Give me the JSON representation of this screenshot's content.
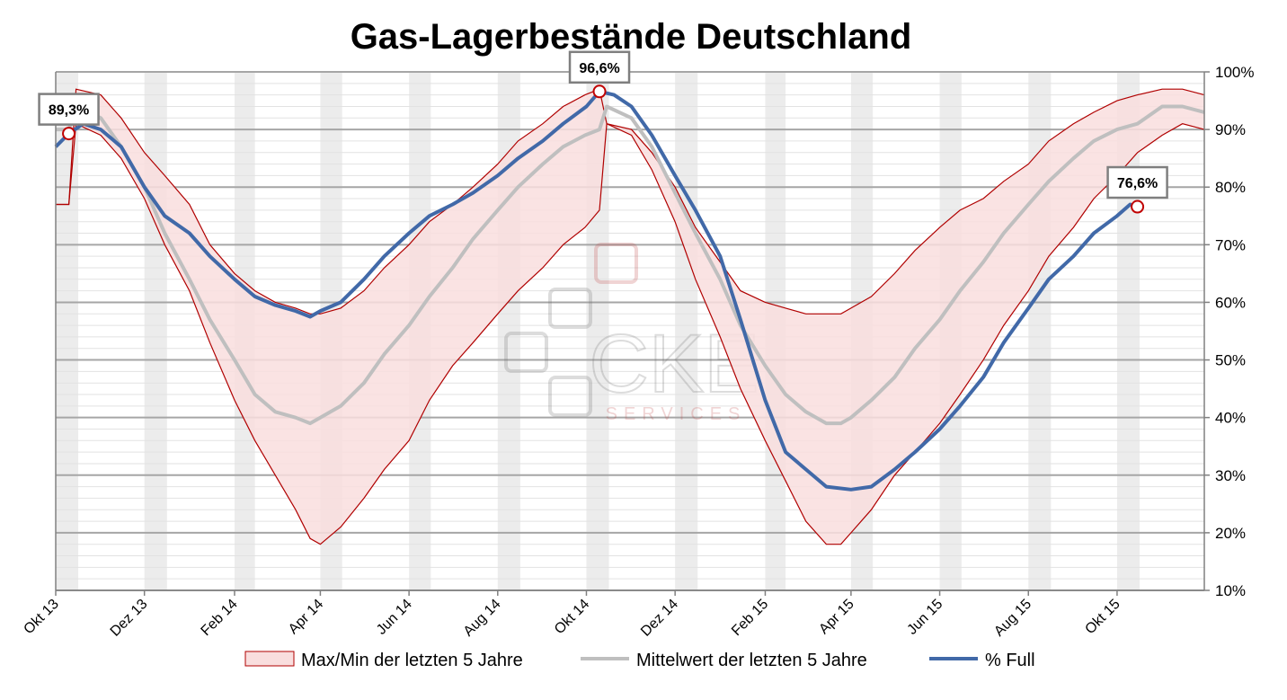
{
  "chart_data": {
    "type": "line",
    "title": "Gas-Lagerbestände Deutschland",
    "x_axis": {
      "tick_labels": [
        "Okt 13",
        "Dez 13",
        "Feb 14",
        "Apr 14",
        "Jun 14",
        "Aug 14",
        "Okt 14",
        "Dez 14",
        "Feb 15",
        "Apr 15",
        "Jun 15",
        "Aug 15",
        "Okt 15"
      ],
      "range": [
        "2013-10-01",
        "2015-11-30"
      ],
      "alternating_month_shading": true
    },
    "y_axis": {
      "position": "right",
      "min": 10,
      "max": 100,
      "unit": "%",
      "tick_labels": [
        "10%",
        "20%",
        "30%",
        "40%",
        "50%",
        "60%",
        "70%",
        "80%",
        "90%",
        "100%"
      ],
      "grid": true
    },
    "series": [
      {
        "name": "Max/Min der letzten 5 Jahre",
        "type": "band",
        "color": "#b00000",
        "fill": "#f9dede",
        "x": [
          "2013-10-01",
          "2013-10-10",
          "2013-10-15",
          "2013-11-01",
          "2013-11-15",
          "2013-12-01",
          "2013-12-15",
          "2014-01-01",
          "2014-01-15",
          "2014-02-01",
          "2014-02-15",
          "2014-03-01",
          "2014-03-15",
          "2014-03-25",
          "2014-04-01",
          "2014-04-15",
          "2014-05-01",
          "2014-05-15",
          "2014-06-01",
          "2014-06-15",
          "2014-07-01",
          "2014-07-15",
          "2014-08-01",
          "2014-08-15",
          "2014-09-01",
          "2014-09-15",
          "2014-09-30",
          "2014-10-10",
          "2014-10-15",
          "2014-11-01",
          "2014-11-15",
          "2014-12-01",
          "2014-12-15",
          "2015-01-01",
          "2015-01-15",
          "2015-02-01",
          "2015-02-15",
          "2015-03-01",
          "2015-03-15",
          "2015-03-25",
          "2015-04-01",
          "2015-04-15",
          "2015-05-01",
          "2015-05-15",
          "2015-06-01",
          "2015-06-15",
          "2015-07-01",
          "2015-07-15",
          "2015-08-01",
          "2015-08-15",
          "2015-09-01",
          "2015-09-15",
          "2015-10-01",
          "2015-10-15",
          "2015-11-01",
          "2015-11-15",
          "2015-11-30"
        ],
        "max": [
          77,
          77,
          97,
          96,
          92,
          86,
          82,
          77,
          70,
          65,
          62,
          60,
          59,
          58,
          58,
          59,
          62,
          66,
          70,
          74,
          77,
          80,
          84,
          88,
          91,
          94,
          96,
          97,
          91,
          90,
          86,
          80,
          73,
          67,
          62,
          60,
          59,
          58,
          58,
          58,
          59,
          61,
          65,
          69,
          73,
          76,
          78,
          81,
          84,
          88,
          91,
          93,
          95,
          96,
          97,
          97,
          96
        ],
        "min": [
          77,
          77,
          91,
          89,
          85,
          78,
          70,
          62,
          53,
          43,
          36,
          30,
          24,
          19,
          18,
          21,
          26,
          31,
          36,
          43,
          49,
          53,
          58,
          62,
          66,
          70,
          73,
          76,
          91,
          89,
          83,
          74,
          64,
          54,
          45,
          36,
          29,
          22,
          18,
          18,
          20,
          24,
          30,
          34,
          39,
          44,
          50,
          56,
          62,
          68,
          73,
          78,
          82,
          86,
          89,
          91,
          90
        ]
      },
      {
        "name": "Mittelwert der letzten 5 Jahre",
        "color": "#bfbfbf",
        "x": [
          "2013-10-01",
          "2013-10-10",
          "2013-10-15",
          "2013-11-01",
          "2013-11-15",
          "2013-12-01",
          "2013-12-15",
          "2014-01-01",
          "2014-01-15",
          "2014-02-01",
          "2014-02-15",
          "2014-03-01",
          "2014-03-15",
          "2014-03-25",
          "2014-04-01",
          "2014-04-15",
          "2014-05-01",
          "2014-05-15",
          "2014-06-01",
          "2014-06-15",
          "2014-07-01",
          "2014-07-15",
          "2014-08-01",
          "2014-08-15",
          "2014-09-01",
          "2014-09-15",
          "2014-09-30",
          "2014-10-10",
          "2014-10-15",
          "2014-11-01",
          "2014-11-15",
          "2014-12-01",
          "2014-12-15",
          "2015-01-01",
          "2015-01-15",
          "2015-02-01",
          "2015-02-15",
          "2015-03-01",
          "2015-03-15",
          "2015-03-25",
          "2015-04-01",
          "2015-04-15",
          "2015-05-01",
          "2015-05-15",
          "2015-06-01",
          "2015-06-15",
          "2015-07-01",
          "2015-07-15",
          "2015-08-01",
          "2015-08-15",
          "2015-09-01",
          "2015-09-15",
          "2015-10-01",
          "2015-10-15",
          "2015-11-01",
          "2015-11-15",
          "2015-11-30"
        ],
        "values": [
          90,
          90,
          94,
          92,
          87,
          80,
          72,
          64,
          57,
          50,
          44,
          41,
          40,
          39,
          40,
          42,
          46,
          51,
          56,
          61,
          66,
          71,
          76,
          80,
          84,
          87,
          89,
          90,
          94,
          92,
          87,
          79,
          72,
          64,
          56,
          49,
          44,
          41,
          39,
          39,
          40,
          43,
          47,
          52,
          57,
          62,
          67,
          72,
          77,
          81,
          85,
          88,
          90,
          91,
          94,
          94,
          93
        ]
      },
      {
        "name": "% Full",
        "color": "#4169a8",
        "x": [
          "2013-10-01",
          "2013-10-10",
          "2013-10-20",
          "2013-11-01",
          "2013-11-15",
          "2013-12-01",
          "2013-12-15",
          "2014-01-01",
          "2014-01-15",
          "2014-02-01",
          "2014-02-15",
          "2014-03-01",
          "2014-03-15",
          "2014-03-25",
          "2014-04-01",
          "2014-04-15",
          "2014-05-01",
          "2014-05-15",
          "2014-06-01",
          "2014-06-15",
          "2014-07-01",
          "2014-07-15",
          "2014-08-01",
          "2014-08-15",
          "2014-09-01",
          "2014-09-15",
          "2014-10-01",
          "2014-10-10",
          "2014-10-20",
          "2014-11-01",
          "2014-11-15",
          "2014-12-01",
          "2014-12-15",
          "2015-01-01",
          "2015-01-15",
          "2015-02-01",
          "2015-02-15",
          "2015-03-01",
          "2015-03-15",
          "2015-04-01",
          "2015-04-15",
          "2015-05-01",
          "2015-05-15",
          "2015-06-01",
          "2015-06-15",
          "2015-07-01",
          "2015-07-15",
          "2015-08-01",
          "2015-08-15",
          "2015-09-01",
          "2015-09-15",
          "2015-10-01",
          "2015-10-10",
          "2015-10-15"
        ],
        "values": [
          87,
          89.3,
          91,
          90,
          87,
          80,
          75,
          72,
          68,
          64,
          61,
          59.5,
          58.5,
          57.5,
          58.5,
          60,
          64,
          68,
          72,
          75,
          77,
          79,
          82,
          85,
          88,
          91,
          94,
          96.6,
          96,
          94,
          89,
          82,
          76,
          68,
          57,
          43,
          34,
          31,
          28,
          27.5,
          28,
          31,
          34,
          38,
          42,
          47,
          53,
          59,
          64,
          68,
          72,
          75,
          77,
          76.6
        ]
      }
    ],
    "annotations": [
      {
        "label": "89,3%",
        "x": "2013-10-10",
        "y": 89.3
      },
      {
        "label": "96,6%",
        "x": "2014-10-10",
        "y": 96.6
      },
      {
        "label": "76,6%",
        "x": "2015-10-15",
        "y": 76.6
      }
    ],
    "legend": {
      "placement": "bottom",
      "entries": [
        "Max/Min der letzten 5 Jahre",
        "Mittelwert der letzten 5 Jahre",
        "% Full"
      ]
    },
    "watermark": {
      "main": "CKE",
      "sub": "SERVICES"
    }
  }
}
